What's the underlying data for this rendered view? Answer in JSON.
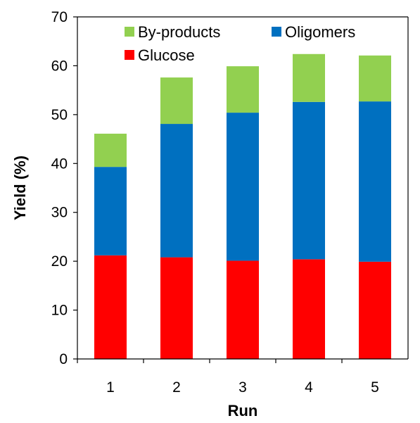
{
  "chart_data": {
    "type": "bar",
    "stacked": true,
    "title": "",
    "xlabel": "Run",
    "ylabel": "Yield (%)",
    "ylim": [
      0,
      70
    ],
    "yticks": [
      0,
      10,
      20,
      30,
      40,
      50,
      60,
      70
    ],
    "categories": [
      "1",
      "2",
      "3",
      "4",
      "5"
    ],
    "series": [
      {
        "name": "Glucose",
        "color": "#ff0000",
        "values": [
          21.2,
          20.8,
          20.1,
          20.4,
          19.9
        ]
      },
      {
        "name": "Oligomers",
        "color": "#0070c0",
        "values": [
          18.1,
          27.3,
          30.3,
          32.2,
          32.8
        ]
      },
      {
        "name": "By-products",
        "color": "#92d050",
        "values": [
          6.8,
          9.5,
          9.5,
          9.8,
          9.4
        ]
      }
    ],
    "legend": {
      "placement": "top",
      "entries": [
        "By-products",
        "Oligomers",
        "Glucose"
      ]
    },
    "grid": false
  }
}
